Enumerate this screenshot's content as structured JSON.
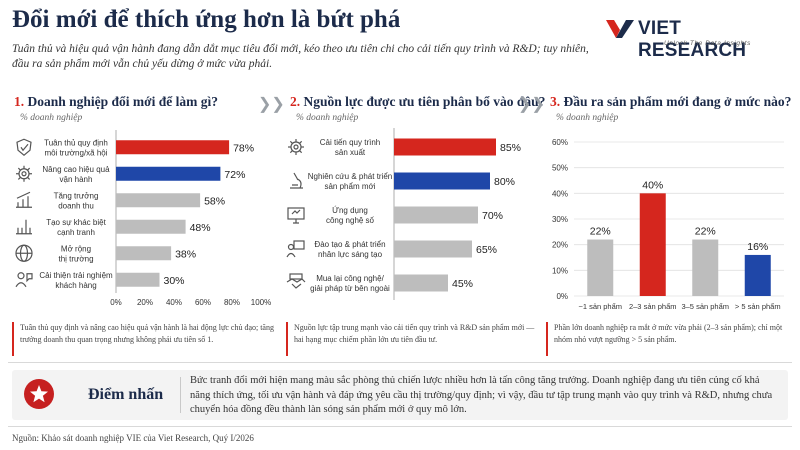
{
  "header": {
    "title": "Đổi mới để thích ứng hơn là bứt phá",
    "subtitle": "Tuân thủ và hiệu quả vận hành đang dẫn dắt mục tiêu đổi mới, kéo theo ưu tiên chi cho cải tiến quy trình và R&D; tuy nhiên, đầu ra sản phẩm mới vẫn chủ yếu dừng ở mức vừa phải."
  },
  "logo": {
    "name": "VIET RESEARCH",
    "tagline": "Unlock The Data Insights",
    "colors": {
      "red": "#d5261e",
      "navy": "#1c2b4a"
    }
  },
  "colors": {
    "red": "#d5261e",
    "blue": "#1f47a8",
    "gray": "#bdbdbd",
    "navy": "#1c2b4a"
  },
  "panels": [
    {
      "num": "1.",
      "title": "Doanh nghiệp đổi mới để làm gì?",
      "unit": "% doanh nghiệp",
      "note": "Tuân thủ quy định và nâng cao hiệu quả vận hành là hai động lực chủ đạo; tăng trưởng doanh thu quan trọng nhưng không phải ưu tiên số 1."
    },
    {
      "num": "2.",
      "title": "Nguồn lực được ưu tiên phân bổ vào đâu?",
      "unit": "% doanh nghiệp",
      "note": "Nguồn lực tập trung mạnh vào cải tiến quy trình và R&D sản phẩm mới — hai hạng mục chiếm phần lớn ưu tiên đầu tư."
    },
    {
      "num": "3.",
      "title": "Đầu ra sản phẩm mới đang ở mức nào?",
      "unit": "% doanh nghiệp",
      "note": "Phần lớn doanh nghiệp ra mắt ở mức vừa phải (2–3 sản phẩm); chỉ một nhóm nhỏ vượt ngưỡng > 5 sản phẩm."
    }
  ],
  "chart_data": [
    {
      "type": "bar",
      "orientation": "horizontal",
      "categories": [
        "Tuân thủ quy định môi trường/xã hội",
        "Nâng cao hiệu quả vận hành",
        "Tăng trưởng doanh thu",
        "Tạo sự khác biệt cạnh tranh",
        "Mở rộng thị trường",
        "Cải thiện trải nghiệm khách hàng"
      ],
      "category_lines": [
        [
          "Tuân thủ quy định",
          "môi trường/xã hội"
        ],
        [
          "Nâng cao hiệu quả",
          "vận hành"
        ],
        [
          "Tăng trưởng",
          "doanh thu"
        ],
        [
          "Tạo sự khác biệt",
          "cạnh tranh"
        ],
        [
          "Mở rộng",
          "thị trường"
        ],
        [
          "Cải thiện trải nghiệm",
          "khách hàng"
        ]
      ],
      "values": [
        78,
        72,
        58,
        48,
        38,
        30
      ],
      "value_labels": [
        "78%",
        "72%",
        "58%",
        "48%",
        "38%",
        "30%"
      ],
      "bar_colors": [
        "red",
        "blue",
        "gray",
        "gray",
        "gray",
        "gray"
      ],
      "icons": [
        "shield-check-icon",
        "gear-icon",
        "growth-chart-icon",
        "differentiation-icon",
        "globe-icon",
        "customer-icon"
      ],
      "xlim": [
        0,
        100
      ],
      "ticks": [
        "0%",
        "20%",
        "40%",
        "60%",
        "80%",
        "100%"
      ],
      "tick_values": [
        0,
        20,
        40,
        60,
        80,
        100
      ]
    },
    {
      "type": "bar",
      "orientation": "horizontal",
      "categories": [
        "Cải tiến quy trình sản xuất",
        "Nghiên cứu & phát triển sản phẩm mới",
        "Ứng dụng công nghệ số",
        "Đào tạo & phát triển nhân lực sáng tạo",
        "Mua lại công nghệ/ giải pháp từ bên ngoài"
      ],
      "category_lines": [
        [
          "Cải tiến quy trình",
          "sản xuất"
        ],
        [
          "Nghiên cứu & phát triển",
          "sản phẩm mới"
        ],
        [
          "Ứng dụng",
          "công nghệ số"
        ],
        [
          "Đào tạo & phát triển",
          "nhân lực sáng tạo"
        ],
        [
          "Mua lại công nghệ/",
          "giải pháp từ bên ngoài"
        ]
      ],
      "values": [
        85,
        80,
        70,
        65,
        45
      ],
      "value_labels": [
        "85%",
        "80%",
        "70%",
        "65%",
        "45%"
      ],
      "bar_colors": [
        "red",
        "blue",
        "gray",
        "gray",
        "gray"
      ],
      "icons": [
        "process-gears-icon",
        "microscope-icon",
        "digital-monitor-icon",
        "training-icon",
        "handshake-icon"
      ],
      "xlim": [
        0,
        100
      ]
    },
    {
      "type": "bar",
      "orientation": "vertical",
      "categories": [
        "~1 sản phẩm",
        "2–3 sản phẩm",
        "3–5 sản phẩm",
        "> 5 sản phẩm"
      ],
      "values": [
        22,
        40,
        22,
        16
      ],
      "value_labels": [
        "22%",
        "40%",
        "22%",
        "16%"
      ],
      "bar_colors": [
        "gray",
        "red",
        "gray",
        "blue"
      ],
      "ylim": [
        0,
        60
      ],
      "ticks": [
        "0%",
        "10%",
        "20%",
        "30%",
        "40%",
        "50%",
        "60%"
      ],
      "tick_values": [
        0,
        10,
        20,
        30,
        40,
        50,
        60
      ],
      "grid": true
    }
  ],
  "highlight": {
    "label": "Điểm nhấn",
    "text": "Bức tranh đổi mới hiện mang màu sắc phòng thủ chiến lược nhiều hơn là tấn công tăng trưởng. Doanh nghiệp đang ưu tiên củng cố khả năng thích ứng, tối ưu vận hành và đáp ứng yêu cầu thị trường/quy định; vì vậy, đầu tư tập trung mạnh vào quy trình và R&D, nhưng chưa chuyển hóa đồng đều thành làn sóng sản phẩm mới ở quy mô lớn."
  },
  "source": "Nguồn: Khảo sát doanh nghiệp VIE của Viet Research, Quý I/2026"
}
